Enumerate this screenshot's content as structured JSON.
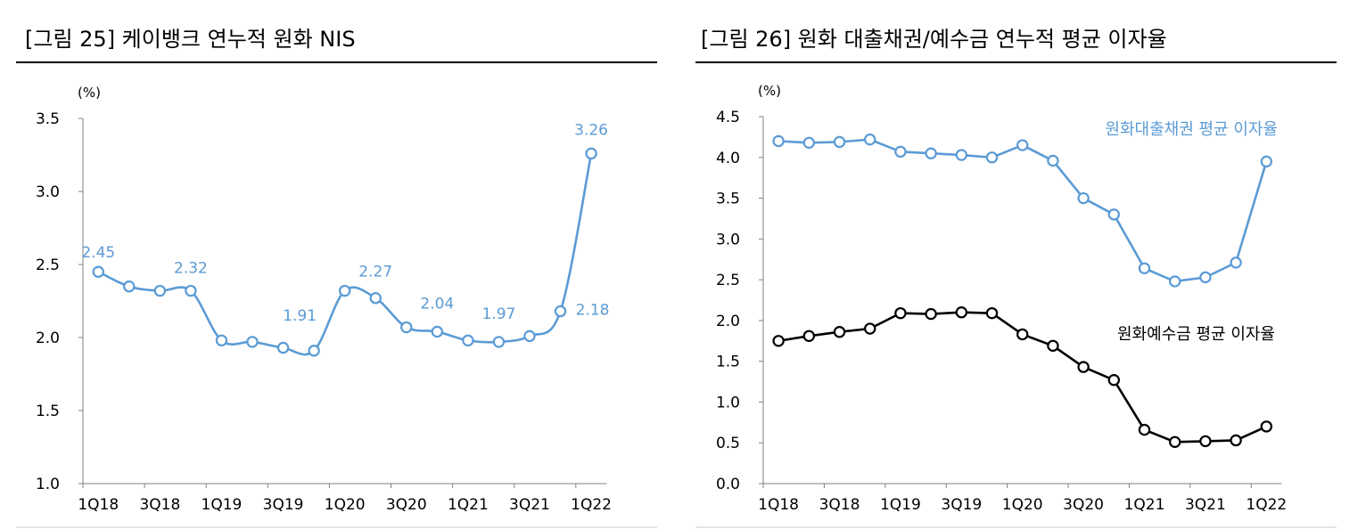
{
  "charts": [
    {
      "title": "[그림 25] 케이뱅크 연누적 원화 NIS"
    },
    {
      "title": "[그림 26] 원화 대출채권/예수금 연누적 평균 이자율"
    }
  ],
  "colors": {
    "blue": "#5B9BD5",
    "black": "#000000",
    "axis": "#808080",
    "rule": "#000000"
  },
  "chart_data": [
    {
      "type": "line",
      "title": "[그림 25] 케이뱅크 연누적 원화 NIS",
      "ylabel": "(%)",
      "ylim": [
        1.0,
        3.5
      ],
      "yticks": [
        "1.0",
        "1.5",
        "2.0",
        "2.5",
        "3.0",
        "3.5"
      ],
      "x": [
        "1Q18",
        "2Q18",
        "3Q18",
        "4Q18",
        "1Q19",
        "2Q19",
        "3Q19",
        "4Q19",
        "1Q20",
        "2Q20",
        "3Q20",
        "4Q20",
        "1Q21",
        "2Q21",
        "3Q21",
        "4Q21",
        "1Q22"
      ],
      "xtick_labels": [
        "1Q18",
        "",
        "3Q18",
        "",
        "1Q19",
        "",
        "3Q19",
        "",
        "1Q20",
        "",
        "3Q20",
        "",
        "1Q21",
        "",
        "3Q21",
        "",
        "1Q22"
      ],
      "series": [
        {
          "color": "#5B9BD5",
          "smooth": true,
          "values": [
            2.45,
            2.35,
            2.32,
            2.32,
            1.98,
            1.97,
            1.93,
            1.91,
            2.32,
            2.27,
            2.07,
            2.04,
            1.98,
            1.97,
            2.01,
            2.18,
            3.26
          ]
        }
      ],
      "data_labels": [
        {
          "index": 0,
          "text": "2.45"
        },
        {
          "index": 3,
          "text": "2.32"
        },
        {
          "index": 7,
          "text": "1.91"
        },
        {
          "index": 9,
          "text": "2.27"
        },
        {
          "index": 11,
          "text": "2.04"
        },
        {
          "index": 13,
          "text": "1.97"
        },
        {
          "index": 15,
          "text": "2.18"
        },
        {
          "index": 16,
          "text": "3.26"
        }
      ],
      "grid": false
    },
    {
      "type": "line",
      "title": "[그림 26] 원화 대출채권/예수금 연누적 평균 이자율",
      "ylabel": "(%)",
      "ylim": [
        0.0,
        4.5
      ],
      "yticks": [
        "0.0",
        "0.5",
        "1.0",
        "1.5",
        "2.0",
        "2.5",
        "3.0",
        "3.5",
        "4.0",
        "4.5"
      ],
      "x": [
        "1Q18",
        "2Q18",
        "3Q18",
        "4Q18",
        "1Q19",
        "2Q19",
        "3Q19",
        "4Q19",
        "1Q20",
        "2Q20",
        "3Q20",
        "4Q20",
        "1Q21",
        "2Q21",
        "3Q21",
        "4Q21",
        "1Q22"
      ],
      "xtick_labels": [
        "1Q18",
        "",
        "3Q18",
        "",
        "1Q19",
        "",
        "3Q19",
        "",
        "1Q20",
        "",
        "3Q20",
        "",
        "1Q21",
        "",
        "3Q21",
        "",
        "1Q22"
      ],
      "series": [
        {
          "name": "원화대출채권 평균 이자율",
          "color": "#5B9BD5",
          "smooth": false,
          "values": [
            4.2,
            4.18,
            4.19,
            4.22,
            4.07,
            4.05,
            4.03,
            4.0,
            4.15,
            3.96,
            3.5,
            3.3,
            2.64,
            2.48,
            2.53,
            2.71,
            3.95
          ]
        },
        {
          "name": "원화예수금 평균 이자율",
          "color": "#000000",
          "smooth": false,
          "values": [
            1.75,
            1.81,
            1.86,
            1.9,
            2.09,
            2.08,
            2.1,
            2.09,
            1.83,
            1.69,
            1.43,
            1.27,
            0.66,
            0.51,
            0.52,
            0.53,
            0.7
          ]
        }
      ],
      "grid": false
    }
  ]
}
